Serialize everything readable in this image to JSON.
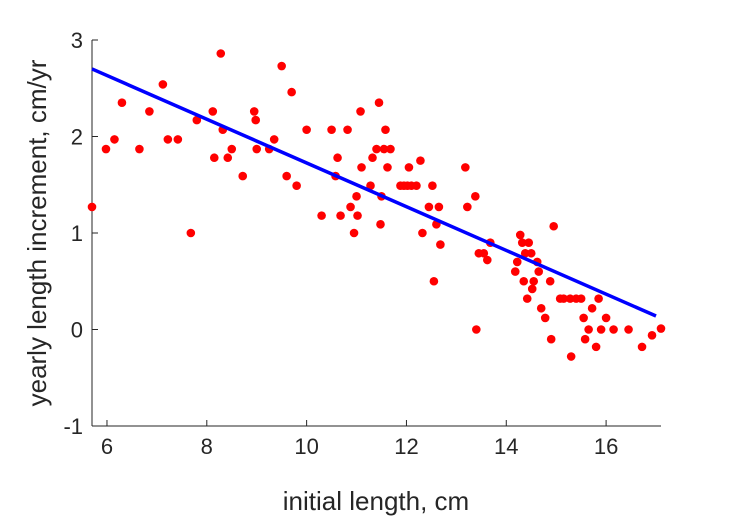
{
  "chart_data": {
    "type": "scatter",
    "title": "",
    "xlabel": "initial length, cm",
    "ylabel": "yearly length increment, cm/yr",
    "xlim": [
      5.7,
      17.1
    ],
    "ylim": [
      -1,
      3
    ],
    "xticks": [
      6,
      8,
      10,
      12,
      14,
      16
    ],
    "xtick_labels": [
      "6",
      "8",
      "10",
      "12",
      "14",
      "16"
    ],
    "yticks": [
      -1,
      0,
      1,
      2,
      3
    ],
    "ytick_labels": [
      "-1",
      "0",
      "1",
      "2",
      "3"
    ],
    "grid": false,
    "box": "left-bottom",
    "colors": {
      "points": "#ff0000",
      "fit_line": "#0000ff",
      "axes": "#262626"
    },
    "series": [
      {
        "kind": "points",
        "x": [
          5.7,
          5.98,
          6.15,
          6.3,
          6.65,
          6.85,
          7.12,
          7.22,
          7.42,
          7.68,
          7.8,
          8.12,
          8.15,
          8.28,
          8.32,
          8.42,
          8.5,
          8.72,
          8.95,
          8.98,
          9.0,
          9.25,
          9.35,
          9.5,
          9.6,
          9.7,
          9.8,
          10.0,
          10.3,
          10.5,
          10.58,
          10.62,
          10.68,
          10.82,
          10.88,
          10.95,
          11.0,
          11.02,
          11.08,
          11.1,
          11.28,
          11.32,
          11.4,
          11.45,
          11.48,
          11.5,
          11.55,
          11.58,
          11.62,
          11.68,
          11.88,
          11.95,
          12.02,
          12.05,
          12.1,
          12.2,
          12.28,
          12.32,
          12.45,
          12.52,
          12.55,
          12.6,
          12.65,
          12.68,
          13.18,
          13.22,
          13.38,
          13.4,
          13.45,
          13.55,
          13.62,
          13.68,
          14.18,
          14.22,
          14.28,
          14.32,
          14.35,
          14.38,
          14.42,
          14.45,
          14.5,
          14.52,
          14.55,
          14.62,
          14.65,
          14.7,
          14.78,
          14.88,
          14.9,
          14.95,
          15.08,
          15.15,
          15.28,
          15.3,
          15.4,
          15.5,
          15.55,
          15.58,
          15.65,
          15.72,
          15.8,
          15.85,
          15.9,
          16.0,
          16.15,
          16.45,
          16.72,
          16.92,
          17.1
        ],
        "y": [
          1.27,
          1.87,
          1.97,
          2.35,
          1.87,
          2.26,
          2.54,
          1.97,
          1.97,
          1.0,
          2.17,
          2.26,
          1.78,
          2.86,
          2.07,
          1.78,
          1.87,
          1.59,
          2.26,
          2.17,
          1.87,
          1.87,
          1.97,
          2.73,
          1.59,
          2.46,
          1.49,
          2.07,
          1.18,
          2.07,
          1.59,
          1.78,
          1.18,
          2.07,
          1.27,
          1.0,
          1.38,
          1.18,
          2.26,
          1.68,
          1.49,
          1.78,
          1.87,
          2.35,
          1.09,
          1.38,
          1.87,
          2.07,
          1.68,
          1.87,
          1.49,
          1.49,
          1.49,
          1.68,
          1.49,
          1.49,
          1.75,
          1.0,
          1.27,
          1.49,
          0.5,
          1.09,
          1.27,
          0.88,
          1.68,
          1.27,
          1.38,
          0.0,
          0.79,
          0.79,
          0.72,
          0.9,
          0.6,
          0.7,
          0.98,
          0.9,
          0.5,
          0.79,
          0.32,
          0.9,
          0.79,
          0.42,
          0.5,
          0.7,
          0.6,
          0.22,
          0.12,
          0.5,
          -0.1,
          1.07,
          0.32,
          0.32,
          0.32,
          -0.28,
          0.32,
          0.32,
          0.12,
          -0.1,
          0.0,
          0.22,
          -0.18,
          0.32,
          0.0,
          0.12,
          0.0,
          0.0,
          -0.18,
          -0.06,
          0.01
        ]
      },
      {
        "kind": "line",
        "x": [
          5.7,
          17.0
        ],
        "y": [
          2.7,
          0.14
        ]
      }
    ]
  }
}
